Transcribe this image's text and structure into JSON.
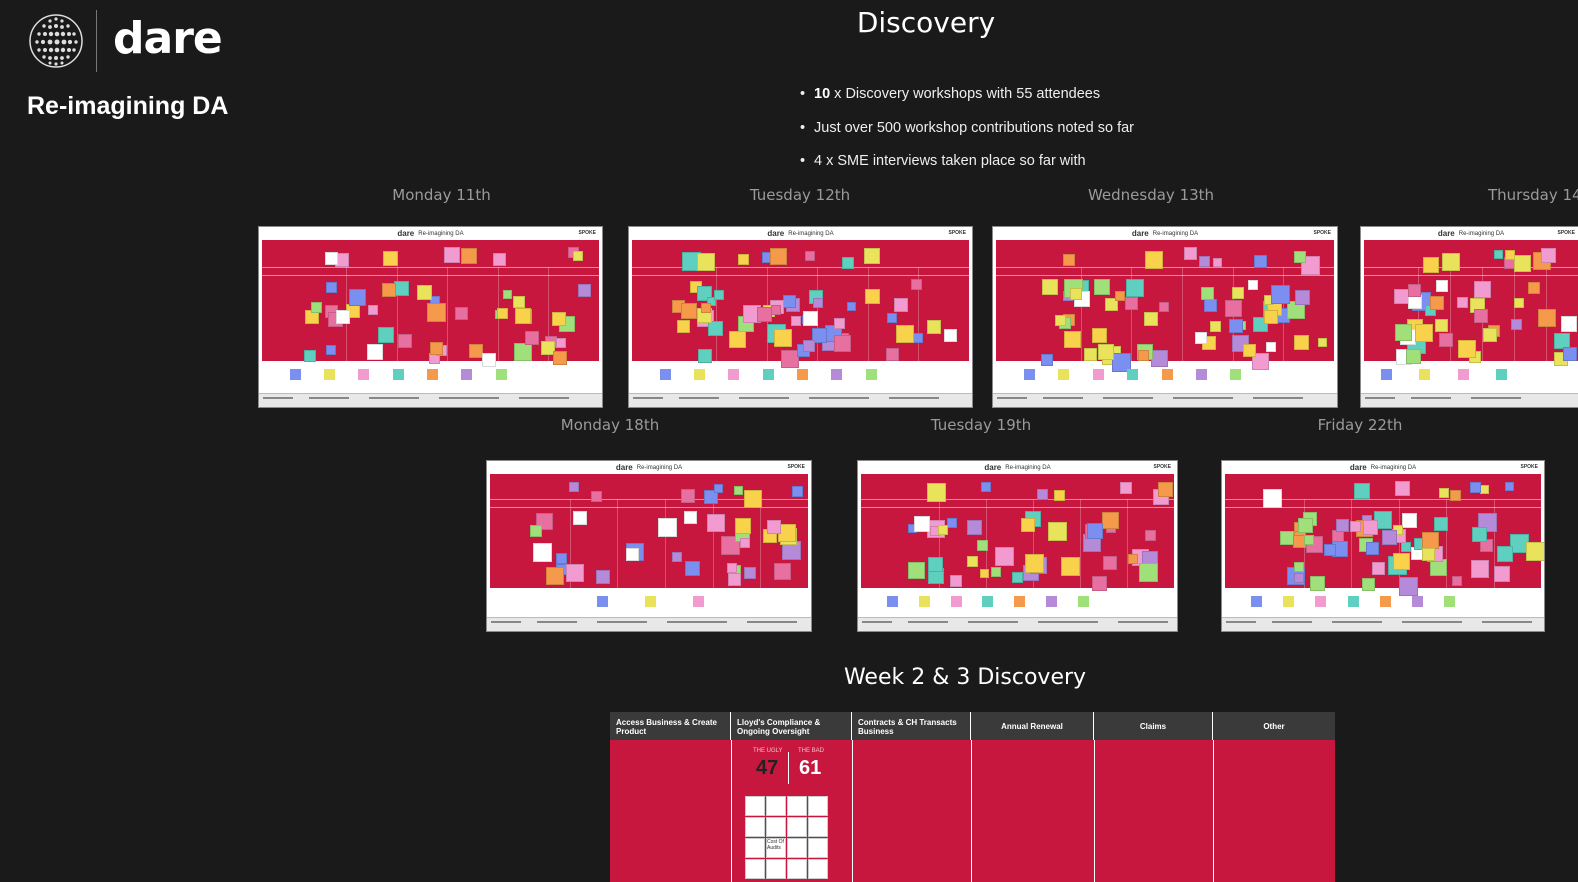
{
  "brand": {
    "logo_text": "dare",
    "subtitle": "Re-imagining DA"
  },
  "title": "Discovery",
  "bullets": [
    {
      "bold": "10",
      "text": " x Discovery workshops with 55 attendees"
    },
    {
      "bold": "",
      "text": "Just over 500 workshop contributions noted so far"
    },
    {
      "bold": "",
      "text": "4 x SME interviews taken place so far with"
    }
  ],
  "days_row1": [
    "Monday 11th",
    "Tuesday 12th",
    "Wednesday 13th",
    "Thursday 14"
  ],
  "days_row2": [
    "Monday 18th",
    "Tuesday 19th",
    "Friday 22th"
  ],
  "board_header": {
    "word": "dare",
    "caption": "Re-imagining DA",
    "right": "SPOKE"
  },
  "week_title": "Week 2 & 3 Discovery",
  "week_board": {
    "columns": [
      "Access Business & Create Product",
      "Lloyd's Compliance & Ongoing Oversight",
      "Contracts & CH Transacts Business",
      "Annual Renewal",
      "Claims",
      "Other"
    ],
    "ugly_label": "THE UGLY",
    "ugly_count": "47",
    "bad_label": "THE BAD",
    "bad_count": "61",
    "card_text": "Cost Of Audits"
  },
  "colors": {
    "background": "#1a1a1a",
    "board_red": "#c8173f",
    "label_gray": "#9a9a9a"
  }
}
